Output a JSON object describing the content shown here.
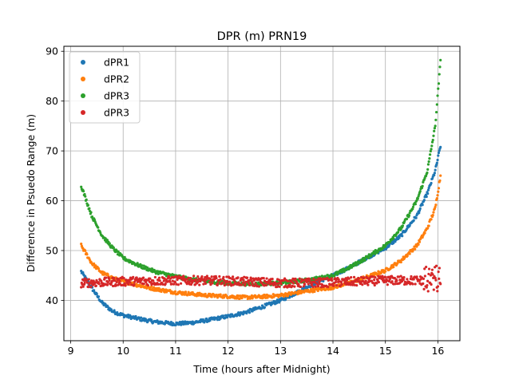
{
  "chart_data": {
    "type": "scatter",
    "title": "DPR (m) PRN19",
    "xlabel": "Time (hours after Midnight)",
    "ylabel": "Difference in Psuedo Range (m)",
    "xlim": [
      8.87,
      16.42
    ],
    "ylim": [
      31.9,
      91.0
    ],
    "xticks": [
      9,
      10,
      11,
      12,
      13,
      14,
      15,
      16
    ],
    "yticks": [
      40,
      50,
      60,
      70,
      80,
      90
    ],
    "grid": true,
    "legend": "top-left",
    "x_range": [
      9.2,
      16.05
    ],
    "series": [
      {
        "name": "dPR1",
        "color": "#1f77b4",
        "points": [
          [
            9.2,
            45.8
          ],
          [
            9.4,
            42.5
          ],
          [
            9.6,
            39.5
          ],
          [
            9.8,
            37.8
          ],
          [
            10.0,
            37.0
          ],
          [
            10.3,
            36.3
          ],
          [
            10.6,
            35.7
          ],
          [
            11.0,
            35.3
          ],
          [
            11.3,
            35.5
          ],
          [
            11.6,
            36.0
          ],
          [
            12.0,
            36.8
          ],
          [
            12.3,
            37.5
          ],
          [
            12.6,
            38.5
          ],
          [
            13.0,
            40.0
          ],
          [
            13.3,
            41.5
          ],
          [
            13.6,
            43.2
          ],
          [
            14.0,
            45.0
          ],
          [
            14.3,
            46.5
          ],
          [
            14.6,
            48.3
          ],
          [
            15.0,
            50.5
          ],
          [
            15.3,
            53.0
          ],
          [
            15.6,
            57.0
          ],
          [
            15.8,
            61.5
          ],
          [
            15.95,
            66.0
          ],
          [
            16.05,
            71.0
          ]
        ]
      },
      {
        "name": "dPR2",
        "color": "#ff7f0e",
        "points": [
          [
            9.2,
            51.0
          ],
          [
            9.4,
            47.5
          ],
          [
            9.6,
            45.5
          ],
          [
            9.8,
            44.5
          ],
          [
            10.0,
            43.8
          ],
          [
            10.3,
            43.0
          ],
          [
            10.6,
            42.3
          ],
          [
            11.0,
            41.6
          ],
          [
            11.3,
            41.3
          ],
          [
            11.6,
            41.0
          ],
          [
            12.0,
            40.8
          ],
          [
            12.3,
            40.6
          ],
          [
            12.6,
            40.7
          ],
          [
            13.0,
            41.0
          ],
          [
            13.3,
            41.5
          ],
          [
            13.6,
            42.0
          ],
          [
            14.0,
            42.6
          ],
          [
            14.3,
            43.5
          ],
          [
            14.6,
            44.5
          ],
          [
            15.0,
            46.0
          ],
          [
            15.3,
            48.0
          ],
          [
            15.6,
            51.0
          ],
          [
            15.8,
            54.5
          ],
          [
            15.95,
            58.5
          ],
          [
            16.05,
            65.0
          ]
        ]
      },
      {
        "name": "dPR3",
        "color": "#2ca02c",
        "points": [
          [
            9.2,
            63.0
          ],
          [
            9.3,
            60.0
          ],
          [
            9.4,
            57.0
          ],
          [
            9.6,
            53.0
          ],
          [
            9.8,
            50.5
          ],
          [
            10.0,
            48.5
          ],
          [
            10.3,
            47.0
          ],
          [
            10.6,
            45.8
          ],
          [
            11.0,
            44.8
          ],
          [
            11.3,
            44.2
          ],
          [
            11.6,
            43.8
          ],
          [
            12.0,
            43.5
          ],
          [
            12.3,
            43.3
          ],
          [
            12.6,
            43.3
          ],
          [
            13.0,
            43.5
          ],
          [
            13.3,
            43.8
          ],
          [
            13.6,
            44.2
          ],
          [
            14.0,
            45.0
          ],
          [
            14.3,
            46.5
          ],
          [
            14.6,
            48.3
          ],
          [
            15.0,
            51.0
          ],
          [
            15.3,
            54.5
          ],
          [
            15.6,
            60.0
          ],
          [
            15.8,
            66.0
          ],
          [
            15.95,
            75.0
          ],
          [
            16.05,
            88.0
          ]
        ]
      },
      {
        "name": "dPR3",
        "color": "#d62728",
        "points": [
          [
            9.2,
            43.5
          ],
          [
            9.5,
            43.6
          ],
          [
            10.0,
            43.8
          ],
          [
            10.5,
            43.9
          ],
          [
            11.0,
            44.0
          ],
          [
            11.5,
            44.0
          ],
          [
            12.0,
            43.9
          ],
          [
            12.5,
            43.7
          ],
          [
            13.0,
            43.5
          ],
          [
            13.5,
            43.5
          ],
          [
            14.0,
            43.6
          ],
          [
            14.5,
            43.8
          ],
          [
            15.0,
            44.0
          ],
          [
            15.5,
            44.0
          ],
          [
            15.9,
            44.0
          ],
          [
            16.05,
            43.5
          ]
        ]
      }
    ]
  }
}
